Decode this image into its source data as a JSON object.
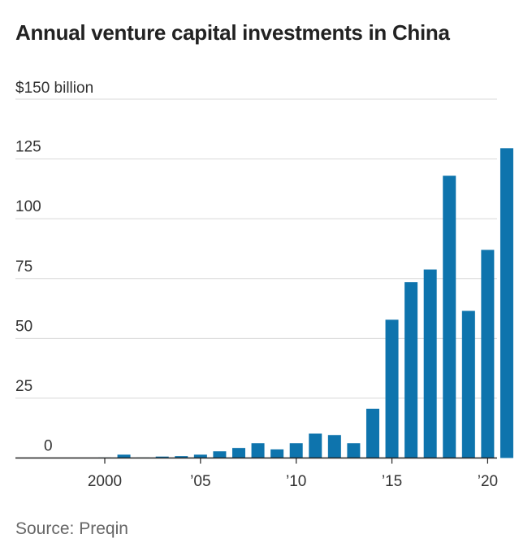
{
  "title": "Annual venture capital investments in China",
  "source": "Source: Preqin",
  "chart_data": {
    "type": "bar",
    "title": "Annual venture capital investments in China",
    "xlabel": "",
    "ylabel": "",
    "unit_label": "$150 billion",
    "ylim": [
      0,
      150
    ],
    "yticks": [
      0,
      25,
      50,
      75,
      100,
      125
    ],
    "ytick_labels": [
      "0",
      "25",
      "50",
      "75",
      "100",
      "125"
    ],
    "xticks": [
      {
        "year": 2000,
        "label": "2000"
      },
      {
        "year": 2005,
        "label": "’05"
      },
      {
        "year": 2010,
        "label": "’10"
      },
      {
        "year": 2015,
        "label": "’15"
      },
      {
        "year": 2020,
        "label": "’20"
      }
    ],
    "color": "#0e74ad",
    "grid": true,
    "categories": [
      2000,
      2001,
      2002,
      2003,
      2004,
      2005,
      2006,
      2007,
      2008,
      2009,
      2010,
      2011,
      2012,
      2013,
      2014,
      2015,
      2016,
      2017,
      2018,
      2019,
      2020,
      2021
    ],
    "values": [
      0.2,
      1.4,
      0.2,
      0.6,
      0.8,
      1.4,
      2.8,
      4.2,
      6.2,
      3.6,
      6.2,
      10.2,
      9.6,
      6.2,
      20.6,
      57.8,
      73.5,
      78.8,
      118,
      61.5,
      87,
      129.5
    ]
  }
}
